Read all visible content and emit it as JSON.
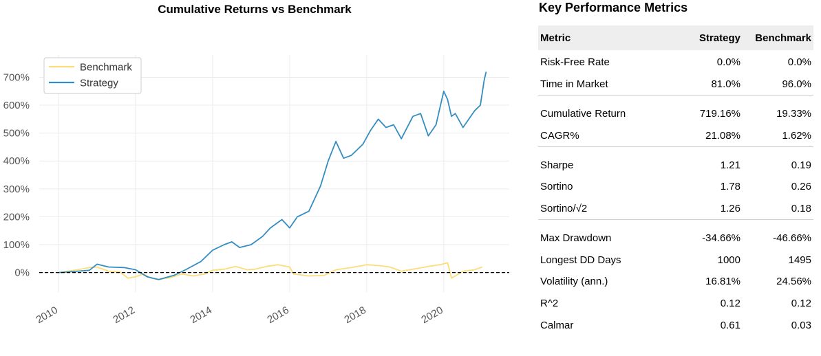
{
  "chart_data": {
    "type": "line",
    "title": "Cumulative Returns vs Benchmark",
    "xlabel": "",
    "ylabel": "",
    "xlim": [
      2009.5,
      2021.7
    ],
    "ylim": [
      -70,
      780
    ],
    "x_ticks": [
      "2010",
      "2012",
      "2014",
      "2016",
      "2018",
      "2020"
    ],
    "y_ticks": [
      "0%",
      "100%",
      "200%",
      "300%",
      "400%",
      "500%",
      "600%",
      "700%"
    ],
    "y_tick_values": [
      0,
      100,
      200,
      300,
      400,
      500,
      600,
      700
    ],
    "grid": true,
    "legend_position": "top-left",
    "baseline": 0,
    "series": [
      {
        "name": "Benchmark",
        "color": "#fddc7a",
        "x": [
          2010.0,
          2010.5,
          2010.8,
          2011.0,
          2011.3,
          2011.6,
          2011.8,
          2012.0,
          2012.2,
          2012.4,
          2012.6,
          2012.9,
          2013.2,
          2013.5,
          2013.8,
          2014.0,
          2014.3,
          2014.6,
          2014.9,
          2015.1,
          2015.4,
          2015.7,
          2016.0,
          2016.1,
          2016.5,
          2016.9,
          2017.2,
          2017.6,
          2018.0,
          2018.3,
          2018.6,
          2018.9,
          2019.2,
          2019.6,
          2019.9,
          2020.1,
          2020.2,
          2020.3,
          2020.5,
          2020.8,
          2021.0
        ],
        "values": [
          0,
          10,
          18,
          20,
          5,
          2,
          -20,
          -15,
          -5,
          -20,
          -25,
          -18,
          -5,
          -12,
          -5,
          8,
          12,
          22,
          10,
          12,
          22,
          28,
          20,
          -5,
          -12,
          -10,
          10,
          18,
          28,
          25,
          20,
          5,
          12,
          22,
          28,
          35,
          -20,
          -12,
          5,
          10,
          20
        ]
      },
      {
        "name": "Strategy",
        "color": "#348dc1",
        "x": [
          2010.0,
          2010.5,
          2010.8,
          2011.0,
          2011.3,
          2011.7,
          2012.0,
          2012.3,
          2012.6,
          2013.0,
          2013.3,
          2013.7,
          2014.0,
          2014.3,
          2014.5,
          2014.7,
          2015.0,
          2015.3,
          2015.5,
          2015.8,
          2016.0,
          2016.2,
          2016.5,
          2016.8,
          2017.0,
          2017.2,
          2017.4,
          2017.6,
          2017.9,
          2018.1,
          2018.3,
          2018.5,
          2018.7,
          2018.9,
          2019.2,
          2019.4,
          2019.6,
          2019.8,
          2020.0,
          2020.1,
          2020.2,
          2020.3,
          2020.5,
          2020.8,
          2020.95,
          2021.05,
          2021.1
        ],
        "values": [
          0,
          5,
          8,
          30,
          20,
          18,
          10,
          -15,
          -25,
          -10,
          10,
          40,
          80,
          100,
          110,
          90,
          100,
          130,
          160,
          190,
          160,
          200,
          220,
          310,
          400,
          470,
          410,
          420,
          460,
          510,
          550,
          520,
          530,
          480,
          560,
          570,
          490,
          530,
          650,
          620,
          560,
          570,
          520,
          580,
          600,
          690,
          720
        ]
      }
    ]
  },
  "metrics": {
    "title": "Key Performance Metrics",
    "headers": [
      "Metric",
      "Strategy",
      "Benchmark"
    ],
    "rows": [
      {
        "metric": "Risk-Free Rate",
        "strategy": "0.0%",
        "benchmark": "0.0%"
      },
      {
        "metric": "Time in Market",
        "strategy": "81.0%",
        "benchmark": "96.0%"
      },
      {
        "metric": "Cumulative Return",
        "strategy": "719.16%",
        "benchmark": "19.33%"
      },
      {
        "metric": "CAGR%",
        "strategy": "21.08%",
        "benchmark": "1.62%"
      },
      {
        "metric": "Sharpe",
        "strategy": "1.21",
        "benchmark": "0.19"
      },
      {
        "metric": "Sortino",
        "strategy": "1.78",
        "benchmark": "0.26"
      },
      {
        "metric": "Sortino/√2",
        "strategy": "1.26",
        "benchmark": "0.18"
      },
      {
        "metric": "Max Drawdown",
        "strategy": "-34.66%",
        "benchmark": "-46.66%"
      },
      {
        "metric": "Longest DD Days",
        "strategy": "1000",
        "benchmark": "1495"
      },
      {
        "metric": "Volatility (ann.)",
        "strategy": "16.81%",
        "benchmark": "24.56%"
      },
      {
        "metric": "R^2",
        "strategy": "0.12",
        "benchmark": "0.12"
      },
      {
        "metric": "Calmar",
        "strategy": "0.61",
        "benchmark": "0.03"
      }
    ]
  }
}
